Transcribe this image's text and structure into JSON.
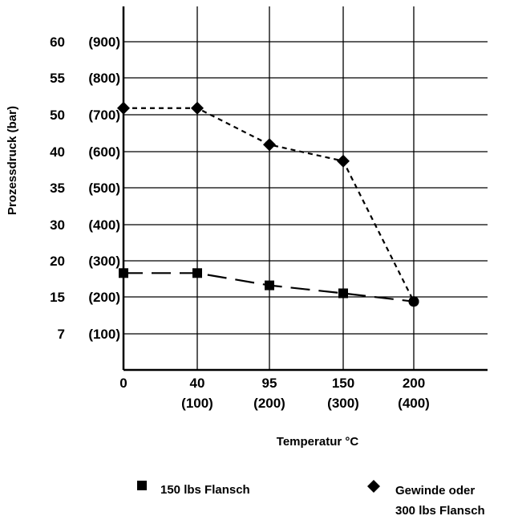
{
  "chart_data": {
    "type": "line",
    "xlabel": "Temperatur °C",
    "ylabel": "Prozessdruck (bar)",
    "x_ticks": [
      {
        "value": 0,
        "label": "0",
        "sub": ""
      },
      {
        "value": 40,
        "label": "40",
        "sub": "(100)"
      },
      {
        "value": 95,
        "label": "95",
        "sub": "(200)"
      },
      {
        "value": 150,
        "label": "150",
        "sub": "(300)"
      },
      {
        "value": 200,
        "label": "200",
        "sub": "(400)"
      }
    ],
    "y_ticks": [
      {
        "label": "7",
        "sub": "(100)"
      },
      {
        "label": "15",
        "sub": "(200)"
      },
      {
        "label": "20",
        "sub": "(300)"
      },
      {
        "label": "30",
        "sub": "(400)"
      },
      {
        "label": "35",
        "sub": "(500)"
      },
      {
        "label": "40",
        "sub": "(600)"
      },
      {
        "label": "50",
        "sub": "(700)"
      },
      {
        "label": "55",
        "sub": "(800)"
      },
      {
        "label": "60",
        "sub": "(900)"
      }
    ],
    "grid": true,
    "series": [
      {
        "name": "150 lbs Flansch",
        "marker": "square",
        "dash": "long",
        "points": [
          [
            0,
            18.3
          ],
          [
            40,
            18.3
          ],
          [
            95,
            16.6
          ],
          [
            150,
            15.5
          ],
          [
            200,
            14.0
          ]
        ]
      },
      {
        "name": "Gewinde oder 300 lbs Flansch",
        "marker": "diamond",
        "dash": "short",
        "points": [
          [
            0,
            50.9
          ],
          [
            40,
            50.9
          ],
          [
            95,
            41.9
          ],
          [
            150,
            38.7
          ],
          [
            200,
            14.0
          ]
        ]
      }
    ],
    "legend": {
      "position": "bottom",
      "items": [
        {
          "marker": "square",
          "lines": [
            "150 lbs Flansch"
          ]
        },
        {
          "marker": "diamond",
          "lines": [
            "Gewinde oder",
            "300 lbs Flansch"
          ]
        }
      ]
    }
  }
}
